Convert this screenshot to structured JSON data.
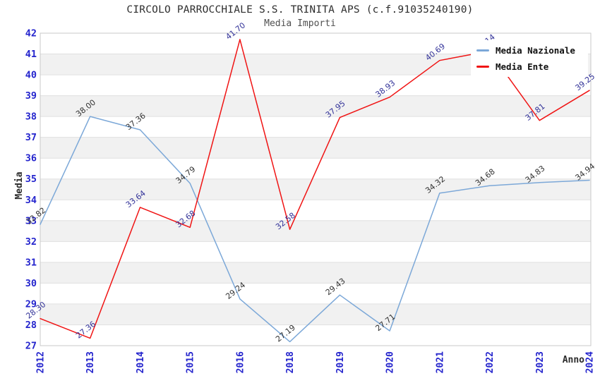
{
  "header": {
    "title": "CIRCOLO PARROCCHIALE S.S. TRINITA APS (c.f.91035240190)",
    "subtitle": "Media Importi"
  },
  "chart_data": {
    "type": "line",
    "title": "CIRCOLO PARROCCHIALE S.S. TRINITA APS (c.f.91035240190)",
    "subtitle": "Media Importi",
    "xlabel": "Anno",
    "ylabel": "Media",
    "x": [
      "2012",
      "2013",
      "2014",
      "2015",
      "2016",
      "2018",
      "2019",
      "2020",
      "2021",
      "2022",
      "2023",
      "2024"
    ],
    "series": [
      {
        "name": "Media Nazionale",
        "color": "#7ca8d8",
        "label_color": "#333333",
        "values": [
          32.82,
          38.0,
          37.36,
          34.79,
          29.24,
          27.19,
          29.43,
          27.71,
          34.32,
          34.68,
          34.83,
          34.94
        ]
      },
      {
        "name": "Media Ente",
        "color": "#f01414",
        "label_color": "#333399",
        "values": [
          28.3,
          27.36,
          33.64,
          32.68,
          41.7,
          32.58,
          37.95,
          38.93,
          40.69,
          41.14,
          37.81,
          39.25
        ]
      }
    ],
    "ylim": [
      27,
      42
    ],
    "yticks": [
      27,
      28,
      29,
      30,
      31,
      32,
      33,
      34,
      35,
      36,
      37,
      38,
      39,
      40,
      41,
      42
    ],
    "grid": "horizontal-bands-alternating",
    "legend_position": "top-right",
    "colors": {
      "band_fill": "#f1f1f1",
      "gridline": "#e0e0e0",
      "frame": "#c9c9c9",
      "tick_label": "#2424cd",
      "axis_label": "#2b2b2b",
      "title": "#2e2e2e",
      "subtitle": "#4f4f4f"
    }
  }
}
